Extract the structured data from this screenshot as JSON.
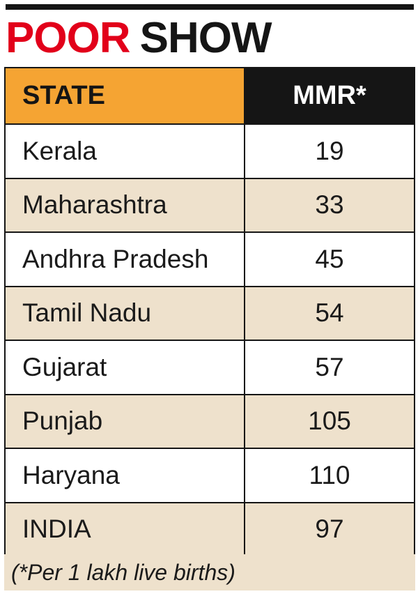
{
  "headline": {
    "word1": "POOR",
    "word2": "SHOW"
  },
  "colors": {
    "accent_red": "#e2001a",
    "header_orange": "#f5a433",
    "header_black": "#151515",
    "row_tint": "#eee1cc"
  },
  "chart_data": {
    "type": "table",
    "title": "POOR SHOW",
    "columns": [
      "STATE",
      "MMR*"
    ],
    "rows": [
      {
        "state": "Kerala",
        "mmr": "19"
      },
      {
        "state": "Maharashtra",
        "mmr": "33"
      },
      {
        "state": "Andhra Pradesh",
        "mmr": "45"
      },
      {
        "state": "Tamil Nadu",
        "mmr": "54"
      },
      {
        "state": "Gujarat",
        "mmr": "57"
      },
      {
        "state": "Punjab",
        "mmr": "105"
      },
      {
        "state": "Haryana",
        "mmr": "110"
      },
      {
        "state": "INDIA",
        "mmr": "97"
      }
    ],
    "footnote": "(*Per 1 lakh live births)"
  }
}
